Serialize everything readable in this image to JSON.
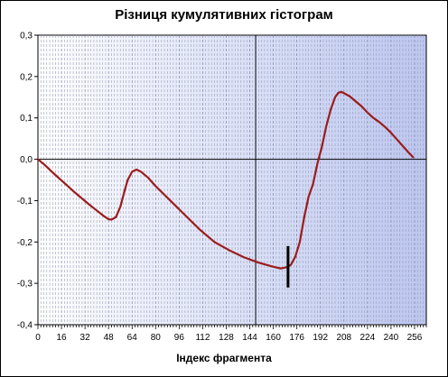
{
  "chart_data": {
    "type": "line",
    "title": "Різниця кумулятивних гістограм",
    "xlabel": "Індекс фрагмента",
    "ylabel": "",
    "xlim": [
      0,
      264
    ],
    "ylim": [
      -0.4,
      0.3
    ],
    "x_ticks": [
      0,
      16,
      32,
      48,
      64,
      80,
      96,
      112,
      128,
      144,
      160,
      176,
      192,
      208,
      224,
      240,
      256
    ],
    "y_ticks": [
      -0.4,
      -0.3,
      -0.2,
      -0.1,
      0.0,
      0.1,
      0.2,
      0.3
    ],
    "y_tick_labels": [
      "-0,4",
      "-0,3",
      "-0,2",
      "-0,1",
      "0,0",
      "0,1",
      "0,2",
      "0,3"
    ],
    "grid": "vertical dashed every 2 units",
    "background": "white to light blue gradient",
    "line_color": "#9b1c1c",
    "crosshair": {
      "x": 148,
      "y": 0.0
    },
    "marker": {
      "x": 170,
      "y_from": -0.31,
      "y_to": -0.21
    },
    "series": [
      {
        "x": [
          0,
          5,
          10,
          15,
          20,
          25,
          30,
          35,
          40,
          45,
          48,
          50,
          53,
          56,
          59,
          61,
          64,
          67,
          70,
          75,
          80,
          90,
          100,
          110,
          120,
          130,
          140,
          150,
          160,
          165,
          168,
          170,
          172,
          175,
          178,
          181,
          184,
          187,
          190,
          193,
          196,
          199,
          202,
          204,
          206,
          208,
          212,
          216,
          220,
          224,
          228,
          232,
          236,
          240,
          244,
          248,
          252,
          255
        ],
        "y": [
          0.0,
          -0.015,
          -0.032,
          -0.048,
          -0.064,
          -0.08,
          -0.095,
          -0.11,
          -0.124,
          -0.138,
          -0.145,
          -0.146,
          -0.14,
          -0.115,
          -0.075,
          -0.05,
          -0.03,
          -0.025,
          -0.03,
          -0.045,
          -0.065,
          -0.1,
          -0.135,
          -0.17,
          -0.2,
          -0.22,
          -0.237,
          -0.25,
          -0.26,
          -0.264,
          -0.262,
          -0.26,
          -0.255,
          -0.235,
          -0.2,
          -0.14,
          -0.09,
          -0.06,
          -0.01,
          0.03,
          0.08,
          0.12,
          0.15,
          0.16,
          0.163,
          0.16,
          0.152,
          0.14,
          0.128,
          0.113,
          0.1,
          0.09,
          0.078,
          0.064,
          0.048,
          0.032,
          0.016,
          0.005
        ]
      }
    ]
  }
}
